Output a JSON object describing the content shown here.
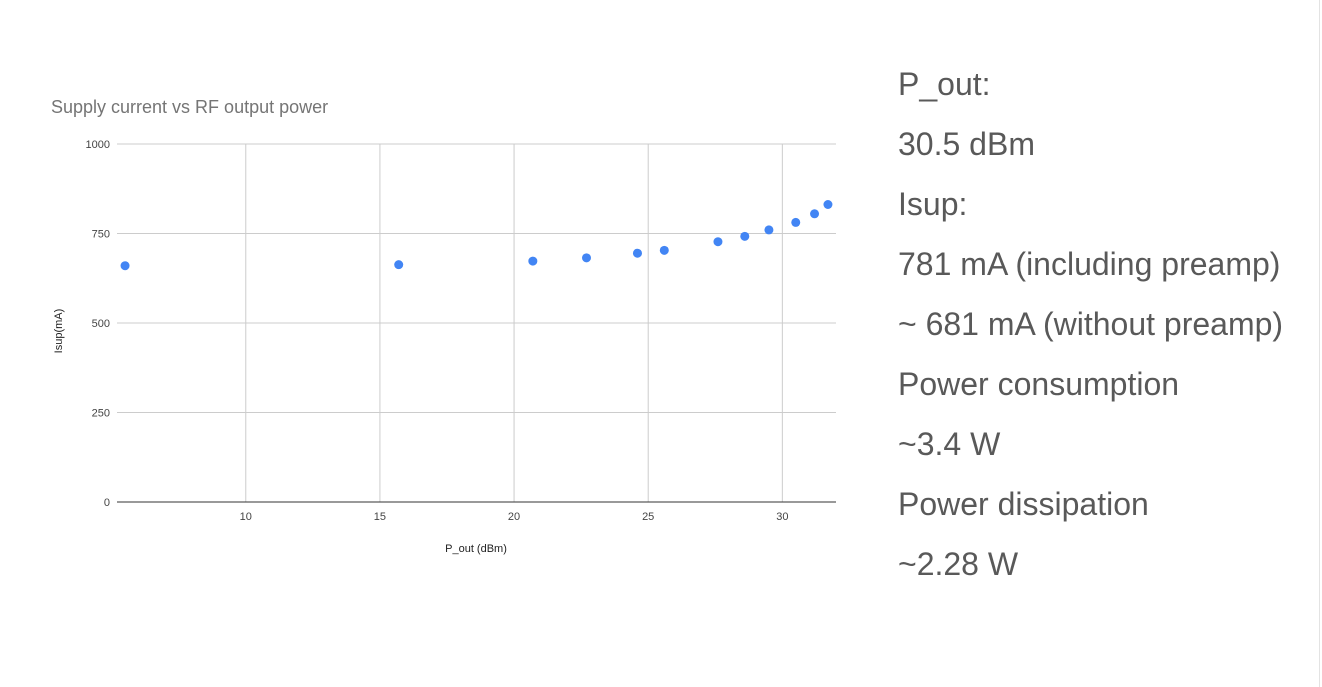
{
  "chart_data": {
    "type": "scatter",
    "title": "Supply current vs RF output power",
    "xlabel": "P_out (dBm)",
    "ylabel": "Isup(mA)",
    "xlim": [
      5.2,
      32
    ],
    "ylim": [
      0,
      1000
    ],
    "x_ticks": [
      10,
      15,
      20,
      25,
      30
    ],
    "y_ticks": [
      0,
      250,
      500,
      750,
      1000
    ],
    "grid": true,
    "legend": "none",
    "point_color": "#4285f4",
    "points": [
      {
        "x": 5.5,
        "y": 660
      },
      {
        "x": 15.7,
        "y": 663
      },
      {
        "x": 20.7,
        "y": 673
      },
      {
        "x": 22.7,
        "y": 682
      },
      {
        "x": 24.6,
        "y": 695
      },
      {
        "x": 25.6,
        "y": 703
      },
      {
        "x": 27.6,
        "y": 727
      },
      {
        "x": 28.6,
        "y": 742
      },
      {
        "x": 29.5,
        "y": 760
      },
      {
        "x": 30.5,
        "y": 781
      },
      {
        "x": 31.2,
        "y": 805
      },
      {
        "x": 31.7,
        "y": 831
      }
    ]
  },
  "info": {
    "lines": [
      "P_out:",
      "30.5 dBm",
      "Isup:",
      "781 mA (including preamp)",
      "~ 681 mA (without preamp)",
      "Power consumption",
      "~3.4 W",
      "Power dissipation",
      "~2.28 W"
    ]
  }
}
